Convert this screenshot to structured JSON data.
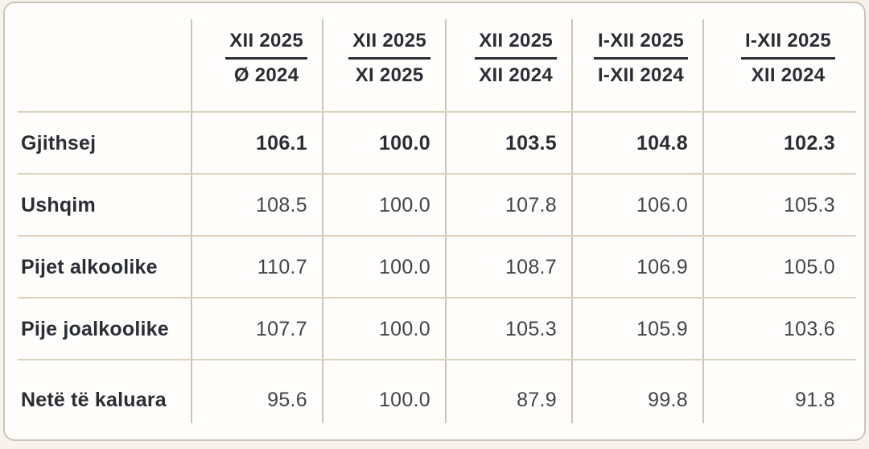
{
  "table": {
    "description": "price-index-comparison-table",
    "column_headers": [
      {
        "numerator": "XII 2025",
        "denominator": "Ø 2024"
      },
      {
        "numerator": "XII 2025",
        "denominator": "XI 2025"
      },
      {
        "numerator": "XII 2025",
        "denominator": "XII 2024"
      },
      {
        "numerator": "I-XII 2025",
        "denominator": "I-XII 2024"
      },
      {
        "numerator": "I-XII 2025",
        "denominator": "XII 2024"
      }
    ],
    "rows": [
      {
        "label": "Gjithsej",
        "values": [
          "106.1",
          "100.0",
          "103.5",
          "104.8",
          "102.3"
        ]
      },
      {
        "label": "Ushqim",
        "values": [
          "108.5",
          "100.0",
          "107.8",
          "106.0",
          "105.3"
        ]
      },
      {
        "label": "Pijet alkoolike",
        "values": [
          "110.7",
          "100.0",
          "108.7",
          "106.9",
          "105.0"
        ]
      },
      {
        "label": "Pije joalkoolike",
        "values": [
          "107.7",
          "100.0",
          "105.3",
          "105.9",
          "103.6"
        ]
      },
      {
        "label": "Netë të kaluara",
        "values": [
          "95.6",
          "100.0",
          "87.9",
          "99.8",
          "91.8"
        ]
      }
    ]
  },
  "colors": {
    "card_background": "#fffefc",
    "page_background": "#f7f3ec",
    "card_border": "#ccc5ba",
    "row_divider": "#ddd0bb",
    "column_divider": "#cdc5b7",
    "text_bold": "#2a2d34",
    "text_regular": "#40444b",
    "fraction_bar": "#2a2d34"
  }
}
